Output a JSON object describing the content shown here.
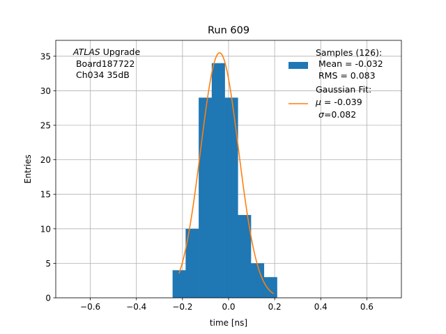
{
  "chart_data": {
    "type": "bar",
    "title": "Run 609",
    "xlabel": "time [ns]",
    "ylabel": "Entries",
    "xlim": [
      -0.75,
      0.75
    ],
    "ylim": [
      0,
      37.3
    ],
    "xticks": [
      -0.6,
      -0.4,
      -0.2,
      0.0,
      0.2,
      0.4,
      0.6
    ],
    "xtick_labels": [
      "−0.6",
      "−0.4",
      "−0.2",
      "0.0",
      "0.2",
      "0.4",
      "0.6"
    ],
    "yticks": [
      0,
      5,
      10,
      15,
      20,
      25,
      30,
      35
    ],
    "ytick_labels": [
      "0",
      "5",
      "10",
      "15",
      "20",
      "25",
      "30",
      "35"
    ],
    "grid": true,
    "histogram": {
      "bin_edges": [
        -0.243,
        -0.1864,
        -0.1297,
        -0.0731,
        -0.0164,
        0.0402,
        0.0969,
        0.1535,
        0.2102
      ],
      "counts": [
        4,
        10,
        29,
        34,
        29,
        12,
        5,
        3
      ],
      "color": "#1f77b4"
    },
    "fit": {
      "mu": -0.039,
      "sigma": 0.082,
      "amplitude": 35.5,
      "x_range": [
        -0.215,
        0.195
      ],
      "color": "#ff7f0e"
    },
    "annotation": {
      "italic_word": "ATLAS",
      "line1_rest": " Upgrade",
      "line2": " Board187722",
      "line3": " Ch034 35dB"
    },
    "legend": {
      "placement": "upper right",
      "samples": {
        "line1": "Samples (126):",
        "line2": " Mean = -0.032",
        "line3": " RMS = 0.083"
      },
      "fit": {
        "line1": "Gaussian Fit:",
        "line2_sym": "μ",
        "line2_rest": " = -0.039",
        "line3_sym": "σ",
        "line3_rest": "=0.082"
      }
    }
  }
}
